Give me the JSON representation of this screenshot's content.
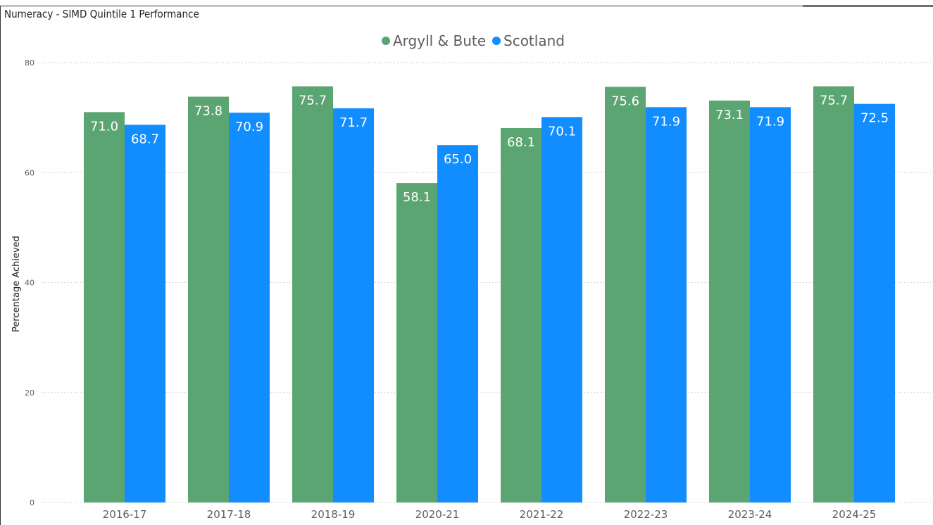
{
  "title": "Numeracy - SIMD Quintile 1 Performance",
  "colors": {
    "argyll": "#5ba572",
    "scotland": "#118dff",
    "grid": "#c8c6c4",
    "text": "#605e5c"
  },
  "chart_data": {
    "type": "bar",
    "title": "Numeracy - SIMD Quintile 1 Performance",
    "xlabel": "",
    "ylabel": "Percentage Achieved",
    "ylim": [
      0,
      80
    ],
    "yticks": [
      0,
      20,
      40,
      60,
      80
    ],
    "grid": true,
    "legend_position": "top-center",
    "categories": [
      "2016-17",
      "2017-18",
      "2018-19",
      "2020-21",
      "2021-22",
      "2022-23",
      "2023-24",
      "2024-25"
    ],
    "series": [
      {
        "name": "Argyll & Bute",
        "color": "#5ba572",
        "values": [
          71.0,
          73.8,
          75.7,
          58.1,
          68.1,
          75.6,
          73.1,
          75.7
        ]
      },
      {
        "name": "Scotland",
        "color": "#118dff",
        "values": [
          68.7,
          70.9,
          71.7,
          65.0,
          70.1,
          71.9,
          71.9,
          72.5
        ]
      }
    ]
  }
}
